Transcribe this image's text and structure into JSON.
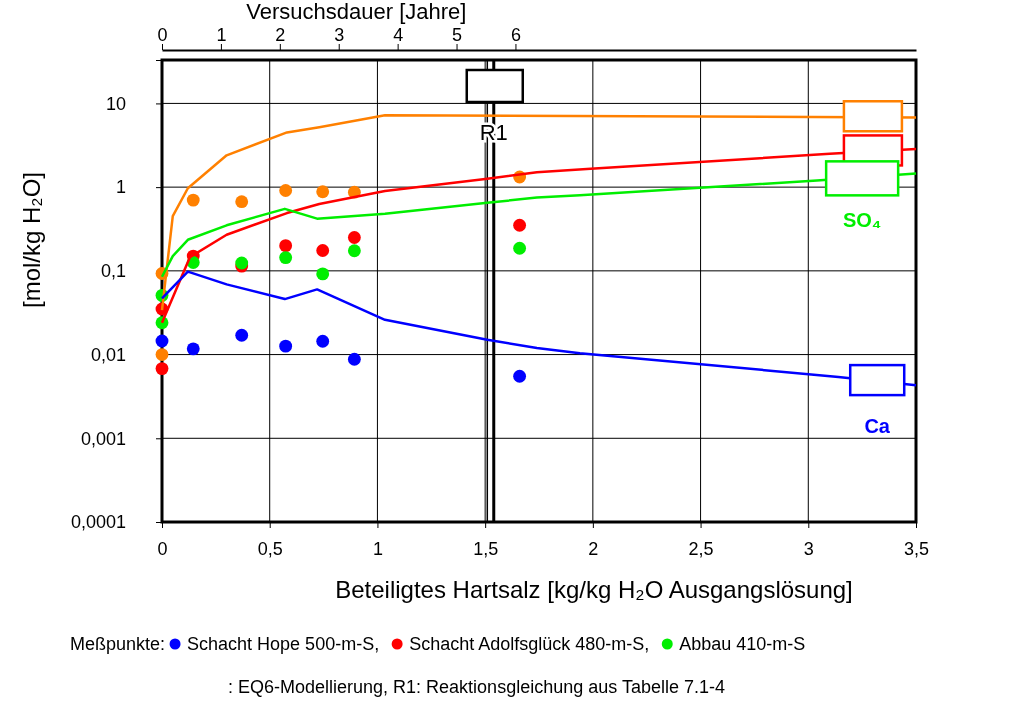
{
  "chart_data": {
    "type": "line",
    "xlabel": "Beteiligtes Hartsalz [kg/kg H₂O Ausgangslösung]",
    "ylabel": "[mol/kg H₂O]",
    "x2label": "Versuchsdauer [Jahre]",
    "legend_title": "Meßpunkte:",
    "annotations": [
      ": EQ6-Modellierung, R1: Reaktionsgleichung aus Tabelle 7.1-4"
    ],
    "xlim": [
      0,
      3.5
    ],
    "xticks": [
      0,
      {
        "value": 0.5,
        "label": "0,5"
      },
      1,
      {
        "value": 1.5,
        "label": "1,5"
      },
      2,
      {
        "value": 2.5,
        "label": "2,5"
      },
      3,
      {
        "value": 3.5,
        "label": "3,5"
      }
    ],
    "x2lim": [
      0,
      12.8
    ],
    "x2ticks": [
      0,
      1,
      2,
      3,
      4,
      5,
      6
    ],
    "ylim": [
      0.0001,
      33
    ],
    "yticks": [
      {
        "value": 0.0001,
        "label": "0,0001"
      },
      {
        "value": 0.001,
        "label": "0,001"
      },
      {
        "value": 0.01,
        "label": "0,01"
      },
      {
        "value": 0.1,
        "label": "0,1"
      },
      1,
      10
    ],
    "log": "y",
    "grid": true,
    "legend": "bottom",
    "ref_lines": [
      {
        "axis": "x",
        "value": 1.51,
        "label": null,
        "color": "#000000"
      },
      {
        "axis": "x",
        "value": 1.54,
        "label": "R1",
        "color": "#000000"
      }
    ],
    "series": [
      {
        "color": "#ff8000",
        "x": [
          0,
          0.05,
          0.12,
          0.3,
          0.58,
          0.73,
          1.035,
          3.5
        ],
        "values": [
          0.034,
          0.45,
          0.97,
          2.4,
          4.5,
          5.2,
          7.2,
          6.8
        ]
      },
      {
        "color": "#ff0000",
        "x": [
          0,
          0.13,
          0.3,
          0.58,
          0.73,
          1.035,
          1.51,
          1.74,
          1.99,
          3.1,
          3.5
        ],
        "values": [
          0.024,
          0.146,
          0.27,
          0.49,
          0.63,
          0.9,
          1.26,
          1.51,
          1.66,
          2.5,
          2.85
        ]
      },
      {
        "name": "SO₄",
        "color": "#00ee00",
        "x": [
          0,
          0.05,
          0.12,
          0.3,
          0.57,
          0.72,
          1.035,
          1.51,
          1.74,
          1.94,
          3.04,
          3.5
        ],
        "values": [
          0.085,
          0.15,
          0.235,
          0.35,
          0.55,
          0.42,
          0.48,
          0.65,
          0.75,
          0.8,
          1.2,
          1.45
        ]
      },
      {
        "name": "Ca",
        "color": "#0000ff",
        "x": [
          0,
          0.12,
          0.3,
          0.57,
          0.72,
          1.035,
          1.51,
          1.74,
          1.94,
          3.14,
          3.5
        ],
        "values": [
          0.047,
          0.098,
          0.069,
          0.046,
          0.06,
          0.026,
          0.015,
          0.012,
          0.0104,
          0.0054,
          0.0043
        ]
      },
      {
        "type": "scatter",
        "marker": "circle",
        "color": "#ff8000",
        "x": [
          0,
          0,
          0.145,
          0.37,
          0.574,
          0.746,
          0.893,
          1.66
        ],
        "values": [
          0.093,
          0.01,
          0.7,
          0.67,
          0.91,
          0.88,
          0.87,
          1.32
        ]
      },
      {
        "type": "scatter",
        "marker": "circle",
        "name": "Schacht Hope 500-m-S,",
        "color": "#0000ff",
        "x": [
          0,
          0.145,
          0.37,
          0.574,
          0.746,
          0.893,
          1.66
        ],
        "values": [
          0.0145,
          0.0117,
          0.017,
          0.0126,
          0.0144,
          0.0088,
          0.0055
        ]
      },
      {
        "type": "scatter",
        "marker": "circle",
        "name": "Schacht Adolfsglück 480-m-S,",
        "color": "#ff0000",
        "x": [
          0,
          0,
          0.145,
          0.37,
          0.574,
          0.746,
          0.893,
          1.66
        ],
        "values": [
          0.035,
          0.0068,
          0.15,
          0.114,
          0.2,
          0.175,
          0.25,
          0.35
        ]
      },
      {
        "type": "scatter",
        "marker": "circle",
        "name": "Abbau 410-m-S",
        "color": "#00ee00",
        "x": [
          0,
          0,
          0.145,
          0.37,
          0.574,
          0.746,
          0.893,
          1.66
        ],
        "values": [
          0.051,
          0.024,
          0.126,
          0.124,
          0.144,
          0.092,
          0.174,
          0.186
        ]
      }
    ]
  }
}
